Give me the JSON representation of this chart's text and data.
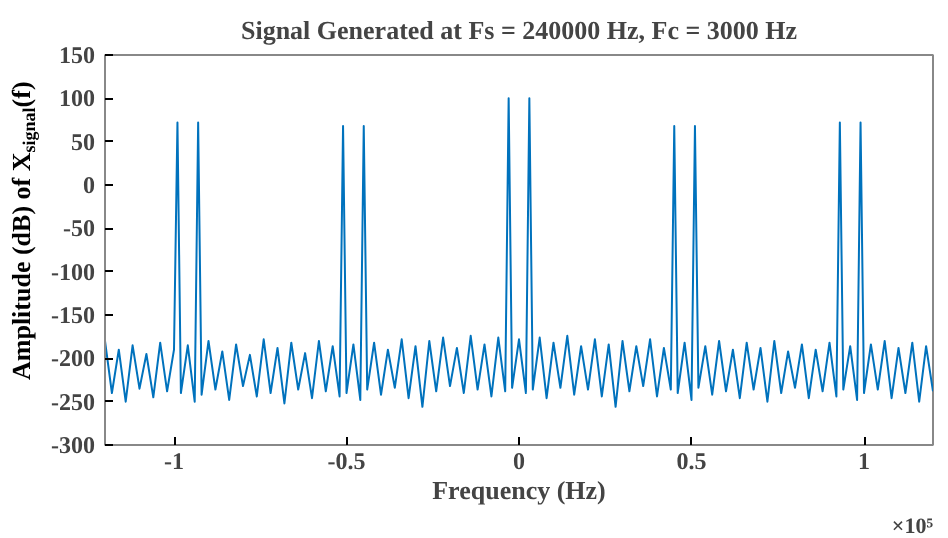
{
  "chart_data": {
    "type": "line",
    "title": "Signal Generated at Fs = 240000 Hz, Fc = 3000 Hz",
    "xlabel": "Frequency (Hz)",
    "ylabel": "Amplitude (dB) of X$_{signal}$(f)",
    "annotations": [
      "×10⁵"
    ],
    "xlim": [
      -1.2,
      1.2
    ],
    "xticks": [
      -1,
      -0.5,
      0,
      0.5,
      1
    ],
    "ylim": [
      -300,
      150
    ],
    "yticks": [
      -300,
      -250,
      -200,
      -150,
      -100,
      -50,
      0,
      50,
      100,
      150
    ],
    "grid": false,
    "line_style": "solid",
    "series": [
      {
        "color": "#0072bd",
        "x": [
          -1.2,
          -1.18,
          -1.16,
          -1.14,
          -1.12,
          -1.1,
          -1.08,
          -1.06,
          -1.04,
          -1.02,
          -1.0,
          -0.99,
          -0.98,
          -0.96,
          -0.94,
          -0.93,
          -0.92,
          -0.9,
          -0.88,
          -0.86,
          -0.84,
          -0.82,
          -0.8,
          -0.78,
          -0.76,
          -0.74,
          -0.72,
          -0.7,
          -0.68,
          -0.66,
          -0.64,
          -0.62,
          -0.6,
          -0.58,
          -0.56,
          -0.54,
          -0.52,
          -0.51,
          -0.5,
          -0.48,
          -0.46,
          -0.45,
          -0.44,
          -0.42,
          -0.4,
          -0.38,
          -0.36,
          -0.34,
          -0.32,
          -0.3,
          -0.28,
          -0.26,
          -0.24,
          -0.22,
          -0.2,
          -0.18,
          -0.16,
          -0.14,
          -0.12,
          -0.1,
          -0.08,
          -0.06,
          -0.04,
          -0.03,
          -0.02,
          0,
          0.02,
          0.03,
          0.04,
          0.06,
          0.08,
          0.1,
          0.12,
          0.14,
          0.16,
          0.18,
          0.2,
          0.22,
          0.24,
          0.26,
          0.28,
          0.3,
          0.32,
          0.34,
          0.36,
          0.38,
          0.4,
          0.42,
          0.44,
          0.45,
          0.46,
          0.48,
          0.5,
          0.51,
          0.52,
          0.54,
          0.56,
          0.58,
          0.6,
          0.62,
          0.64,
          0.66,
          0.68,
          0.7,
          0.72,
          0.74,
          0.76,
          0.78,
          0.8,
          0.82,
          0.84,
          0.86,
          0.88,
          0.9,
          0.92,
          0.93,
          0.94,
          0.96,
          0.98,
          0.99,
          1.0,
          1.02,
          1.04,
          1.06,
          1.08,
          1.1,
          1.12,
          1.14,
          1.16,
          1.18,
          1.2
        ],
        "values": [
          -180,
          -240,
          -190,
          -250,
          -185,
          -235,
          -195,
          -245,
          -182,
          -238,
          -190,
          72,
          -240,
          -185,
          -250,
          72,
          -242,
          -180,
          -236,
          -192,
          -248,
          -184,
          -232,
          -196,
          -244,
          -178,
          -240,
          -188,
          -252,
          -182,
          -236,
          -194,
          -246,
          -180,
          -238,
          -186,
          -244,
          68,
          -240,
          -184,
          -248,
          68,
          -236,
          -182,
          -242,
          -190,
          -234,
          -178,
          -246,
          -186,
          -256,
          -180,
          -238,
          -176,
          -232,
          -188,
          -240,
          -174,
          -236,
          -184,
          -244,
          -176,
          -238,
          100,
          -234,
          -178,
          -240,
          100,
          -236,
          -176,
          -246,
          -182,
          -234,
          -174,
          -242,
          -186,
          -236,
          -178,
          -244,
          -184,
          -256,
          -180,
          -238,
          -186,
          -232,
          -178,
          -244,
          -188,
          -236,
          68,
          -240,
          -182,
          -248,
          68,
          -234,
          -186,
          -242,
          -180,
          -238,
          -190,
          -246,
          -182,
          -236,
          -188,
          -250,
          -180,
          -240,
          -192,
          -234,
          -184,
          -246,
          -190,
          -238,
          -182,
          -244,
          72,
          -236,
          -186,
          -248,
          72,
          -240,
          -184,
          -236,
          -180,
          -246,
          -188,
          -240,
          -182,
          -250,
          -186,
          -238
        ]
      }
    ]
  }
}
